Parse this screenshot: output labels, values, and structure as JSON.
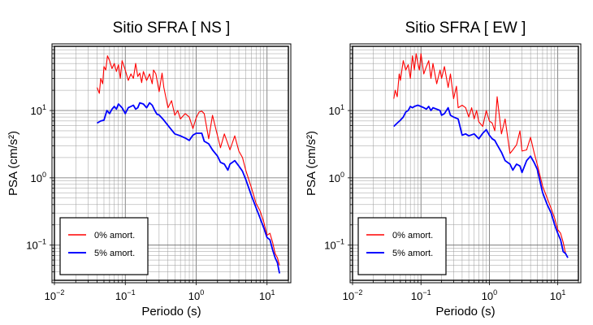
{
  "chart_data": [
    {
      "type": "line",
      "title": "Sitio SFRA [ NS ]",
      "xlabel": "Periodo (s)",
      "ylabel": "PSA (cm/s²)",
      "x_scale": "log",
      "y_scale": "log",
      "xlim": [
        0.01,
        20
      ],
      "ylim": [
        0.03,
        90
      ],
      "grid": true,
      "legend_position": "bottom-left",
      "x_ticks": [
        {
          "base": "10",
          "exp": "−2"
        },
        {
          "base": "10",
          "exp": "−1"
        },
        {
          "base": "10",
          "exp": "0"
        },
        {
          "base": "10",
          "exp": "1"
        }
      ],
      "y_ticks": [
        {
          "value": 0.1,
          "base": "10",
          "exp": "−1"
        },
        {
          "value": 1,
          "base": "10",
          "exp": "0"
        },
        {
          "value": 10,
          "base": "10",
          "exp": "1"
        }
      ],
      "series": [
        {
          "name": "0% amort.",
          "color": "#ff0000",
          "x": [
            0.04,
            0.043,
            0.045,
            0.048,
            0.05,
            0.053,
            0.056,
            0.06,
            0.065,
            0.07,
            0.075,
            0.08,
            0.085,
            0.09,
            0.1,
            0.11,
            0.12,
            0.13,
            0.14,
            0.15,
            0.16,
            0.17,
            0.18,
            0.2,
            0.22,
            0.24,
            0.25,
            0.27,
            0.3,
            0.33,
            0.35,
            0.4,
            0.45,
            0.5,
            0.55,
            0.6,
            0.7,
            0.8,
            0.9,
            1.0,
            1.1,
            1.2,
            1.3,
            1.5,
            1.7,
            2.0,
            2.2,
            2.5,
            2.8,
            3.0,
            3.5,
            4.0,
            4.5,
            5.0,
            6.0,
            7.0,
            8.0,
            9.0,
            10.0,
            11.0,
            12.0,
            13.0,
            14.0,
            15.0
          ],
          "y": [
            22,
            18,
            30,
            25,
            45,
            40,
            65,
            55,
            42,
            50,
            38,
            48,
            30,
            55,
            40,
            28,
            35,
            30,
            50,
            32,
            36,
            26,
            38,
            28,
            35,
            25,
            40,
            35,
            19,
            36,
            22,
            11,
            14,
            8.5,
            10,
            7.5,
            9,
            8,
            5.4,
            7.8,
            9.5,
            9.8,
            9,
            3.8,
            8.5,
            4.2,
            2.8,
            4.5,
            3.2,
            2.6,
            4.2,
            2.5,
            2,
            1.3,
            0.72,
            0.42,
            0.32,
            0.22,
            0.14,
            0.15,
            0.11,
            0.075,
            0.065,
            0.05
          ]
        },
        {
          "name": "5% amort.",
          "color": "#0000ff",
          "x": [
            0.04,
            0.045,
            0.05,
            0.055,
            0.06,
            0.065,
            0.07,
            0.075,
            0.08,
            0.09,
            0.1,
            0.11,
            0.12,
            0.13,
            0.14,
            0.15,
            0.16,
            0.18,
            0.2,
            0.22,
            0.24,
            0.26,
            0.28,
            0.3,
            0.35,
            0.4,
            0.5,
            0.6,
            0.7,
            0.8,
            0.9,
            1.0,
            1.1,
            1.2,
            1.3,
            1.5,
            1.7,
            2.0,
            2.2,
            2.5,
            2.8,
            3.0,
            3.5,
            4.0,
            4.5,
            5.0,
            6.0,
            7.0,
            8.0,
            9.0,
            10.0,
            11.0,
            12.0,
            13.0,
            14.0,
            15.0
          ],
          "y": [
            6.5,
            7,
            7.2,
            10,
            9,
            10.5,
            11.5,
            10.5,
            12.5,
            11,
            9,
            11,
            11.5,
            12,
            10.5,
            11,
            13,
            12.5,
            11,
            13,
            12,
            10,
            8.8,
            8.6,
            7.2,
            6,
            4.5,
            4.2,
            3.9,
            3.6,
            4.3,
            4.6,
            4.6,
            4.6,
            3.5,
            3.2,
            2.6,
            2.1,
            1.7,
            1.6,
            1.3,
            1.6,
            1.8,
            1.5,
            1.25,
            0.95,
            0.55,
            0.36,
            0.25,
            0.18,
            0.13,
            0.12,
            0.085,
            0.065,
            0.055,
            0.038
          ]
        }
      ]
    },
    {
      "type": "line",
      "title": "Sitio SFRA [ EW ]",
      "xlabel": "Periodo (s)",
      "ylabel": "PSA (cm/s²)",
      "x_scale": "log",
      "y_scale": "log",
      "xlim": [
        0.01,
        20
      ],
      "ylim": [
        0.03,
        90
      ],
      "grid": true,
      "legend_position": "bottom-left",
      "x_ticks": [
        {
          "base": "10",
          "exp": "−2"
        },
        {
          "base": "10",
          "exp": "−1"
        },
        {
          "base": "10",
          "exp": "0"
        },
        {
          "base": "10",
          "exp": "1"
        }
      ],
      "y_ticks": [
        {
          "value": 0.1,
          "base": "10",
          "exp": "−1"
        },
        {
          "value": 1,
          "base": "10",
          "exp": "0"
        },
        {
          "value": 10,
          "base": "10",
          "exp": "1"
        }
      ],
      "series": [
        {
          "name": "0% amort.",
          "color": "#ff0000",
          "x": [
            0.04,
            0.042,
            0.045,
            0.048,
            0.05,
            0.055,
            0.06,
            0.065,
            0.07,
            0.075,
            0.08,
            0.085,
            0.09,
            0.095,
            0.1,
            0.11,
            0.12,
            0.13,
            0.14,
            0.15,
            0.17,
            0.19,
            0.2,
            0.22,
            0.25,
            0.27,
            0.3,
            0.33,
            0.35,
            0.4,
            0.45,
            0.5,
            0.55,
            0.6,
            0.65,
            0.7,
            0.8,
            0.9,
            1.0,
            1.1,
            1.2,
            1.3,
            1.5,
            1.7,
            2.0,
            2.2,
            2.5,
            2.8,
            3.0,
            3.5,
            4.0,
            4.5,
            5.0,
            6.0,
            7.0,
            8.0,
            9.0,
            10.0,
            11.0,
            12.0,
            13.0,
            14.0
          ],
          "y": [
            15,
            20,
            16,
            35,
            28,
            55,
            40,
            48,
            30,
            65,
            40,
            70,
            50,
            40,
            70,
            35,
            45,
            55,
            30,
            50,
            25,
            40,
            30,
            45,
            22,
            35,
            15,
            23,
            11,
            12,
            11,
            8,
            11,
            7.5,
            10,
            6.8,
            5.8,
            10,
            7,
            6.5,
            5,
            16,
            4.5,
            7.5,
            2.3,
            2.6,
            3.1,
            5,
            2.5,
            2.6,
            4,
            2.4,
            1.6,
            0.75,
            0.5,
            0.35,
            0.25,
            0.17,
            0.15,
            0.11,
            0.075,
            0.065
          ]
        },
        {
          "name": "5% amort.",
          "color": "#0000ff",
          "x": [
            0.04,
            0.045,
            0.05,
            0.055,
            0.06,
            0.065,
            0.07,
            0.075,
            0.08,
            0.09,
            0.1,
            0.11,
            0.12,
            0.13,
            0.14,
            0.15,
            0.17,
            0.19,
            0.2,
            0.22,
            0.25,
            0.27,
            0.3,
            0.35,
            0.4,
            0.45,
            0.5,
            0.6,
            0.7,
            0.8,
            0.9,
            1.0,
            1.1,
            1.2,
            1.3,
            1.5,
            1.7,
            2.0,
            2.2,
            2.5,
            2.8,
            3.0,
            3.5,
            4.0,
            4.5,
            5.0,
            6.0,
            7.0,
            8.0,
            9.0,
            10.0,
            11.0,
            12.0,
            13.0,
            14.0
          ],
          "y": [
            5.8,
            6.5,
            7.2,
            8,
            9.5,
            10,
            11.5,
            11,
            11.5,
            12,
            11.5,
            11,
            10.5,
            11.5,
            10,
            11,
            10.5,
            10,
            8.5,
            9,
            11,
            8.5,
            8,
            7.5,
            4.3,
            4.5,
            4.2,
            4.5,
            3.8,
            4.6,
            5.2,
            4.3,
            3.8,
            3.6,
            3.1,
            2.4,
            1.8,
            1.6,
            1.3,
            1.6,
            1.5,
            1.2,
            1.8,
            2.1,
            1.7,
            1.35,
            0.6,
            0.4,
            0.3,
            0.2,
            0.15,
            0.12,
            0.08,
            0.075,
            0.065
          ]
        }
      ]
    }
  ]
}
